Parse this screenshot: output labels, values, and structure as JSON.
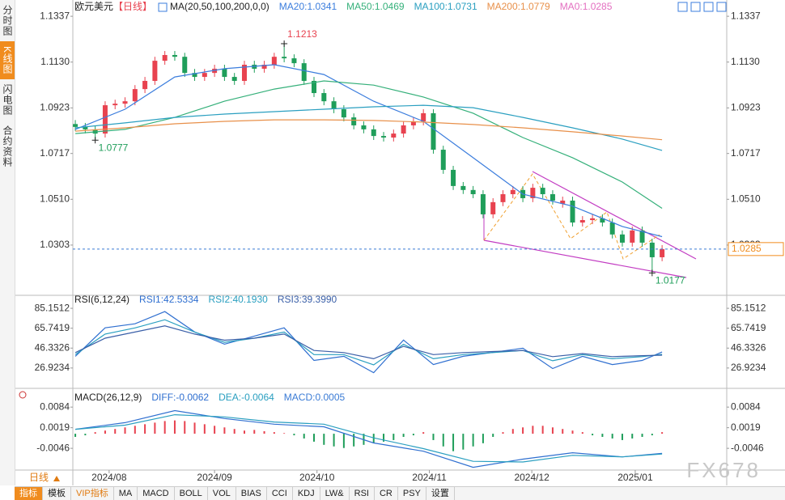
{
  "sidebar_tabs": [
    "分时图",
    "K线图",
    "闪电图",
    "合约资料"
  ],
  "period_selector": "日线",
  "toolbar": [
    "指标",
    "模板",
    "VIP指标",
    "MA",
    "MACD",
    "BOLL",
    "VOL",
    "BIAS",
    "CCI",
    "KDJ",
    "LW&",
    "RSI",
    "CR",
    "PSY",
    "设置"
  ],
  "watermark": "FX678",
  "chart_data": [
    {
      "type": "candlestick",
      "title": "欧元美元",
      "period": "【日线】",
      "indicator_label": "MA(20,50,100,200,0,0)",
      "xlim": [
        -0.25,
        65.5
      ],
      "ylim": [
        1.0087,
        1.1374
      ],
      "yticks": [
        1.1337,
        {
          "value": 1.113,
          "label": "1.1130"
        },
        1.0923,
        1.0717,
        {
          "value": 1.051,
          "label": "1.0510"
        },
        1.0303
      ],
      "xticks": [
        {
          "value": 3.4,
          "label": "2024/08"
        },
        {
          "value": 14,
          "label": "2024/09"
        },
        {
          "value": 24.3,
          "label": "2024/10"
        },
        {
          "value": 35.6,
          "label": "2024/11"
        },
        {
          "value": 45.9,
          "label": "2024/12"
        },
        {
          "value": 56.3,
          "label": "2025/01"
        }
      ],
      "up_color": "#e8424f",
      "down_color": "#1f9e5a",
      "open": [
        1.085,
        1.0837,
        1.0826,
        1.0807,
        1.0935,
        1.0942,
        1.0953,
        1.1008,
        1.1045,
        1.1136,
        1.1162,
        1.1154,
        1.1081,
        1.1063,
        1.1081,
        1.11,
        1.1063,
        1.1045,
        1.1118,
        1.11,
        1.1118,
        1.1154,
        1.1147,
        1.1125,
        1.1045,
        1.099,
        1.0953,
        1.0917,
        1.088,
        1.0844,
        1.0826,
        1.0796,
        1.0789,
        1.0807,
        1.0844,
        1.0862,
        1.0899,
        1.0734,
        1.0643,
        1.057,
        1.0552,
        1.0533,
        1.0442,
        1.0497,
        1.0533,
        1.0552,
        1.0515,
        1.0562,
        1.0533,
        1.049,
        1.0504,
        1.0405,
        1.0416,
        1.0424,
        1.0405,
        1.0351,
        1.0314,
        1.0369,
        1.0314,
        1.0248
      ],
      "high": [
        1.0868,
        1.0855,
        1.0844,
        1.0953,
        1.096,
        1.0971,
        1.1026,
        1.1063,
        1.1154,
        1.118,
        1.118,
        1.1172,
        1.1099,
        1.1099,
        1.1118,
        1.1118,
        1.1081,
        1.1136,
        1.1136,
        1.1136,
        1.1172,
        1.1213,
        1.1165,
        1.1143,
        1.1063,
        1.1008,
        1.0971,
        1.0935,
        1.0898,
        1.0862,
        1.0844,
        1.0814,
        1.0825,
        1.0862,
        1.088,
        1.0917,
        1.0917,
        1.0752,
        1.0661,
        1.0588,
        1.057,
        1.0551,
        1.0515,
        1.0551,
        1.057,
        1.057,
        1.058,
        1.058,
        1.0551,
        1.0522,
        1.0522,
        1.0434,
        1.0442,
        1.0442,
        1.0423,
        1.0369,
        1.0387,
        1.0387,
        1.0332,
        1.0303
      ],
      "low": [
        1.0819,
        1.0808,
        1.0777,
        1.0789,
        1.0917,
        1.0924,
        1.0935,
        1.099,
        1.1027,
        1.1118,
        1.1136,
        1.1063,
        1.1045,
        1.1045,
        1.1063,
        1.1045,
        1.1027,
        1.1027,
        1.1082,
        1.1082,
        1.11,
        1.1129,
        1.1107,
        1.1027,
        1.0972,
        1.0935,
        1.0899,
        1.0862,
        1.0826,
        1.0808,
        1.0778,
        1.0771,
        1.0771,
        1.0789,
        1.0826,
        1.0844,
        1.0716,
        1.0625,
        1.0552,
        1.0534,
        1.0515,
        1.0424,
        1.0424,
        1.0479,
        1.0515,
        1.0497,
        1.0497,
        1.0515,
        1.0486,
        1.0472,
        1.0387,
        1.0387,
        1.0398,
        1.0387,
        1.0333,
        1.0296,
        1.0296,
        1.0296,
        1.0177,
        1.023
      ],
      "close": [
        1.0837,
        1.0826,
        1.0807,
        1.0935,
        1.0942,
        1.0953,
        1.1008,
        1.1045,
        1.1136,
        1.1162,
        1.1154,
        1.1081,
        1.1063,
        1.1081,
        1.11,
        1.1063,
        1.1045,
        1.1118,
        1.11,
        1.1118,
        1.1154,
        1.1147,
        1.1125,
        1.1045,
        1.099,
        1.0953,
        1.0917,
        1.088,
        1.0844,
        1.0826,
        1.0796,
        1.0789,
        1.0807,
        1.0844,
        1.0862,
        1.0899,
        1.0734,
        1.0643,
        1.057,
        1.0552,
        1.0533,
        1.0442,
        1.0497,
        1.0533,
        1.0552,
        1.0515,
        1.0562,
        1.0533,
        1.0504,
        1.0504,
        1.0405,
        1.0416,
        1.0424,
        1.0405,
        1.0351,
        1.0314,
        1.0369,
        1.0314,
        1.0248,
        1.0285
      ],
      "ma_x": [
        0,
        5,
        10,
        15,
        20,
        25,
        30,
        35,
        40,
        45,
        50,
        55,
        59
      ],
      "series": [
        {
          "name": "MA20:1.0341",
          "color": "#3b7ddd",
          "values": [
            1.0826,
            1.0917,
            1.1063,
            1.11,
            1.1118,
            1.1074,
            1.0953,
            1.0862,
            1.0698,
            1.0533,
            1.0479,
            1.0387,
            1.0341
          ]
        },
        {
          "name": "MA50:1.0469",
          "color": "#35b07a",
          "values": [
            1.0807,
            1.0826,
            1.088,
            1.0953,
            1.1008,
            1.1045,
            1.1026,
            1.0972,
            1.0899,
            1.0789,
            1.0698,
            1.0588,
            1.0469
          ]
        },
        {
          "name": "MA100:1.0731",
          "color": "#2a9fc0",
          "values": [
            1.0833,
            1.0855,
            1.088,
            1.0895,
            1.0906,
            1.0917,
            1.0928,
            1.0935,
            1.0924,
            1.088,
            1.0833,
            1.0782,
            1.0731
          ]
        },
        {
          "name": "MA200:1.0779",
          "color": "#e8904a",
          "values": [
            1.0818,
            1.0833,
            1.0851,
            1.0862,
            1.0869,
            1.0869,
            1.0866,
            1.0859,
            1.0848,
            1.0833,
            1.0815,
            1.0796,
            1.0779
          ]
        }
      ],
      "legend_extra": {
        "name": "MA0:1.0285",
        "color": "#e36fc0"
      },
      "annotations": [
        {
          "value": 1.1213,
          "x": 21,
          "color": "#e8424f"
        },
        {
          "value": 1.0777,
          "x": 2,
          "color": "#1f9e5a"
        },
        {
          "value": 1.0177,
          "x": 58,
          "color": "#1f9e5a"
        }
      ],
      "last_price": 1.0285,
      "last_color": "#f08c1e"
    },
    {
      "type": "line",
      "title": "RSI(6,12,24)",
      "xlim": [
        -0.25,
        65.5
      ],
      "ylim": [
        8.65,
        95.48
      ],
      "yticks": [
        85.1512,
        65.7419,
        46.3326,
        26.9234
      ],
      "x": [
        0,
        3,
        6,
        9,
        12,
        15,
        18,
        21,
        24,
        27,
        30,
        33,
        36,
        39,
        42,
        45,
        48,
        51,
        54,
        57,
        59
      ],
      "series": [
        {
          "name": "RSI1:42.5334",
          "color": "#2f6fd0",
          "values": [
            38.3,
            66.1,
            70.1,
            82.0,
            62.1,
            50.2,
            58.1,
            66.1,
            34.3,
            38.3,
            22.4,
            54.2,
            30.3,
            38.3,
            42.2,
            46.2,
            26.4,
            38.3,
            30.3,
            34.3,
            42.5
          ]
        },
        {
          "name": "RSI2:40.1930",
          "color": "#2a9fc0",
          "values": [
            40,
            60,
            66,
            74,
            62,
            52,
            56,
            62,
            40,
            40,
            30,
            50,
            36,
            40,
            42,
            44,
            34,
            40,
            36,
            38,
            40.2
          ]
        },
        {
          "name": "RSI3:39.3990",
          "color": "#3a5fa8",
          "values": [
            42,
            56,
            62,
            68,
            60,
            54,
            56,
            60,
            44,
            42,
            36,
            48,
            40,
            42,
            43,
            44,
            38,
            41,
            38,
            39,
            39.4
          ]
        }
      ]
    },
    {
      "type": "macd",
      "title": "MACD(26,12,9)",
      "xlim": [
        -0.25,
        65.5
      ],
      "ylim": [
        -0.0112,
        0.0138
      ],
      "yticks": [
        0.0084,
        0.0019,
        -0.0046
      ],
      "x": [
        0,
        5,
        10,
        15,
        20,
        25,
        30,
        35,
        40,
        45,
        50,
        55,
        59
      ],
      "series": [
        {
          "name": "DIFF:-0.0062",
          "color": "#2f6fd0",
          "values": [
            0.0014,
            0.0035,
            0.0073,
            0.0048,
            0.003,
            0.0022,
            -0.0029,
            -0.0055,
            -0.0106,
            -0.008,
            -0.006,
            -0.0073,
            -0.0062
          ]
        },
        {
          "name": "DEA:-0.0064",
          "color": "#2a9fc0",
          "values": [
            0.0014,
            0.0027,
            0.006,
            0.0053,
            0.0037,
            0.003,
            -0.0013,
            -0.0047,
            -0.0087,
            -0.0089,
            -0.0068,
            -0.0073,
            -0.0064
          ]
        }
      ],
      "histogram": {
        "name": "MACD:0.0005",
        "color": "#3a7bd5",
        "up_color": "#e8424f",
        "down_color": "#1f9e5a",
        "values": [
          -0.001,
          -0.0005,
          0.0005,
          0.001,
          0.0015,
          0.002,
          0.0025,
          0.003,
          0.0035,
          0.004,
          0.0042,
          0.004,
          0.0035,
          0.003,
          0.0025,
          0.002,
          0.0015,
          0.001,
          0.0012,
          0.0008,
          0.0005,
          0.0002,
          -0.0005,
          -0.0015,
          -0.0025,
          -0.0035,
          -0.004,
          -0.0045,
          -0.004,
          -0.0035,
          -0.003,
          -0.0025,
          -0.002,
          -0.001,
          -0.0005,
          0.0005,
          -0.002,
          -0.004,
          -0.0055,
          -0.005,
          -0.004,
          -0.003,
          -0.001,
          0.0005,
          0.0015,
          0.002,
          0.0025,
          0.0025,
          0.002,
          0.0015,
          0.001,
          0.0005,
          -0.0005,
          -0.001,
          -0.0015,
          -0.002,
          -0.0015,
          -0.001,
          -0.0005,
          0.0005
        ]
      }
    }
  ]
}
